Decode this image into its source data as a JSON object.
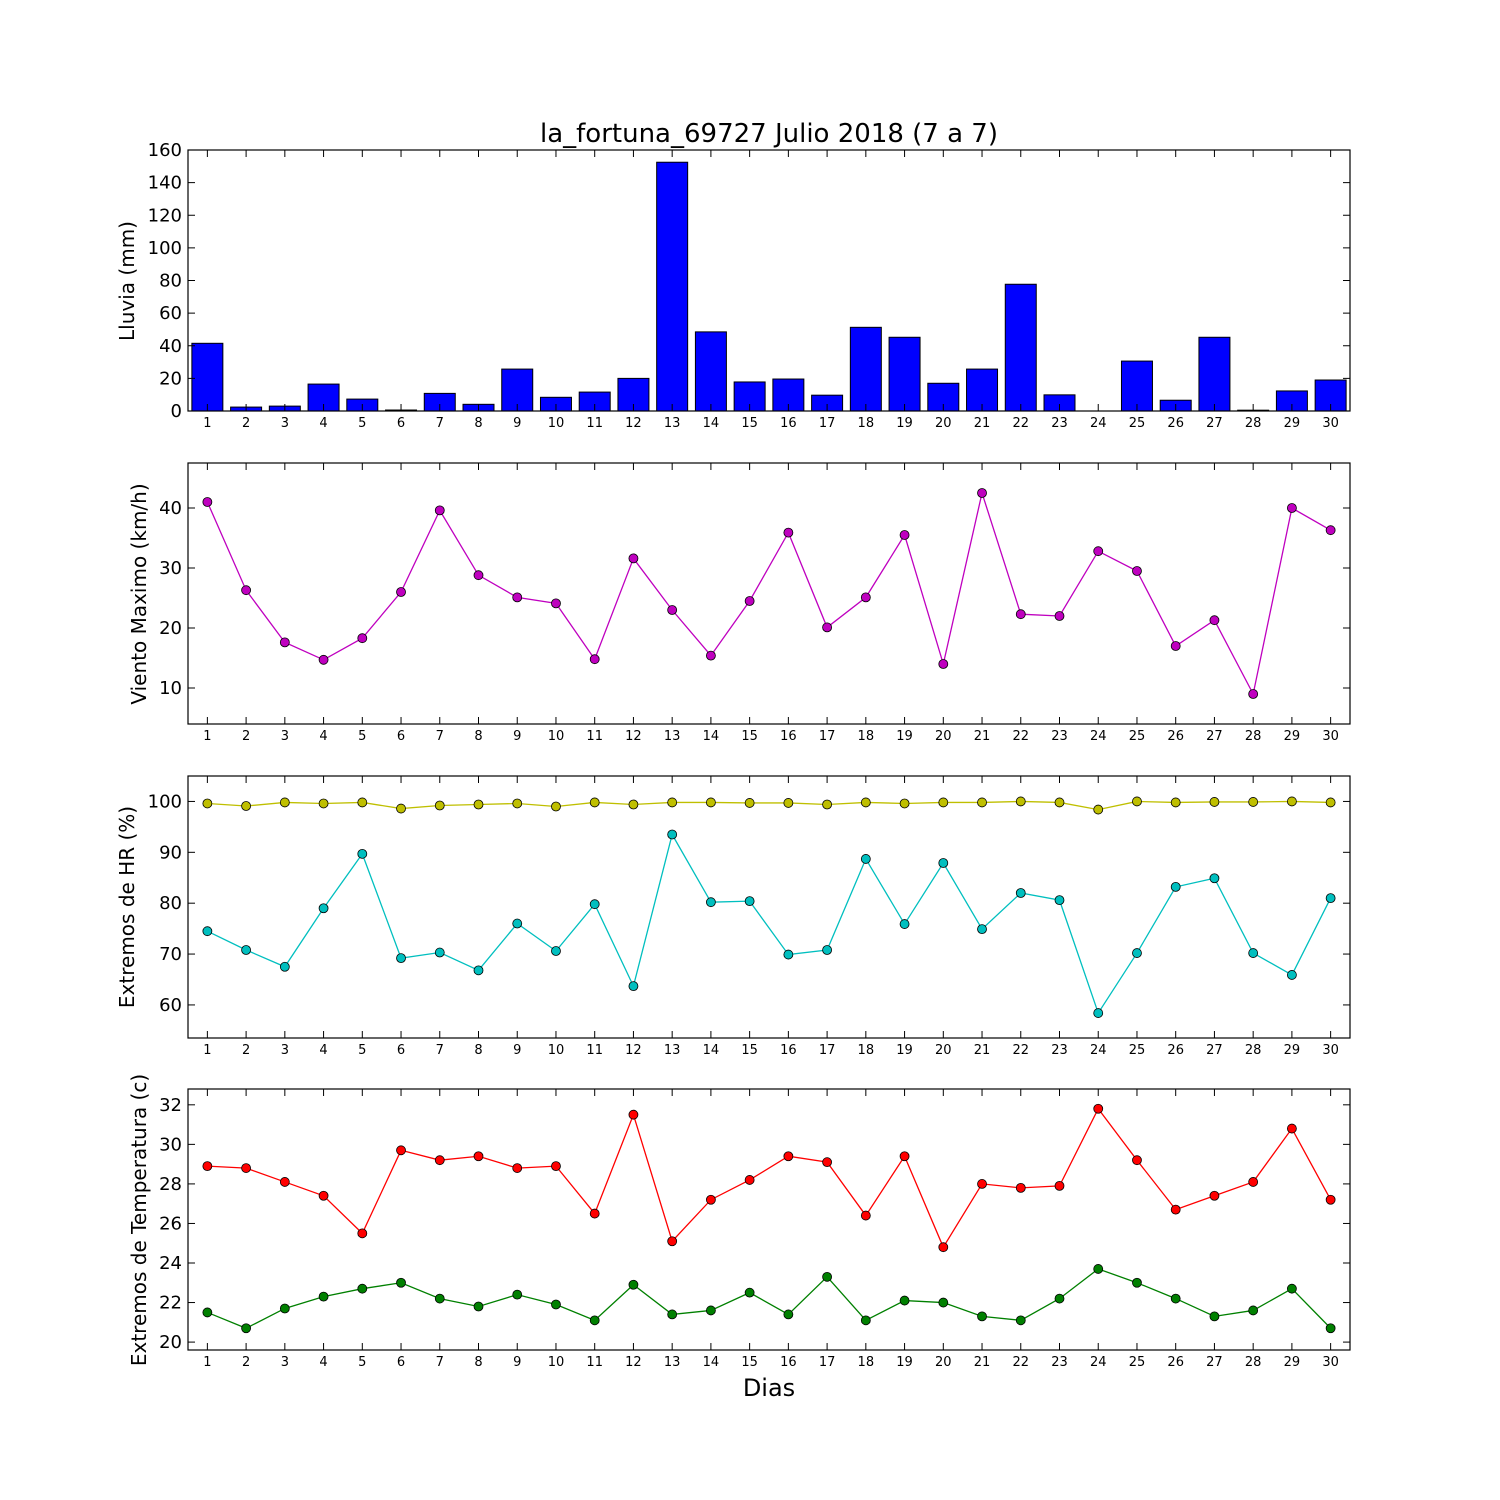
{
  "chart_data": {
    "title": "la_fortuna_69727 Julio 2018  (7 a 7)",
    "xlabel": "Dias",
    "x": [
      1,
      2,
      3,
      4,
      5,
      6,
      7,
      8,
      9,
      10,
      11,
      12,
      13,
      14,
      15,
      16,
      17,
      18,
      19,
      20,
      21,
      22,
      23,
      24,
      25,
      26,
      27,
      28,
      29,
      30
    ],
    "panels": [
      {
        "type": "bar",
        "ylabel": "Lluvia (mm)",
        "ylim": [
          0,
          160
        ],
        "yticks": [
          0,
          20,
          40,
          60,
          80,
          100,
          120,
          140,
          160
        ],
        "series": [
          {
            "color": "#0000ff",
            "values": [
              41.5,
              2.4,
              3,
              16.5,
              7.3,
              0.6,
              10.8,
              4.1,
              25.7,
              8.4,
              11.6,
              20,
              152.5,
              48.5,
              17.8,
              19.6,
              9.7,
              51.3,
              45.2,
              17,
              25.7,
              77.7,
              9.9,
              0,
              30.6,
              6.6,
              45.2,
              0.5,
              12.3,
              19
            ]
          }
        ]
      },
      {
        "type": "line",
        "ylabel": "Viento Maximo (km/h)",
        "ylim": [
          4,
          47.5
        ],
        "yticks": [
          10,
          20,
          30,
          40
        ],
        "series": [
          {
            "color": "#bf00bf",
            "values": [
              41,
              26.3,
              17.6,
              14.7,
              18.3,
              26,
              39.6,
              28.8,
              25.1,
              24.1,
              14.8,
              31.6,
              23,
              15.4,
              24.5,
              35.9,
              20.1,
              25.1,
              35.5,
              14,
              42.5,
              22.3,
              22,
              32.8,
              29.5,
              17,
              21.3,
              9,
              40,
              36.3
            ]
          }
        ]
      },
      {
        "type": "line",
        "ylabel": "Extremos de HR (%)",
        "ylim": [
          53.5,
          105
        ],
        "yticks": [
          60,
          70,
          80,
          90,
          100
        ],
        "series": [
          {
            "color": "#bfbf00",
            "values": [
              99.6,
              99.1,
              99.8,
              99.6,
              99.8,
              98.6,
              99.2,
              99.4,
              99.6,
              99,
              99.8,
              99.4,
              99.8,
              99.8,
              99.7,
              99.7,
              99.4,
              99.8,
              99.6,
              99.8,
              99.8,
              100,
              99.8,
              98.4,
              100,
              99.8,
              99.9,
              99.9,
              100,
              99.8
            ]
          },
          {
            "color": "#00bfbf",
            "values": [
              74.5,
              70.8,
              67.5,
              79,
              89.7,
              69.2,
              70.3,
              66.8,
              76,
              70.6,
              79.8,
              63.7,
              93.5,
              80.2,
              80.4,
              69.9,
              70.8,
              88.7,
              75.9,
              87.9,
              74.9,
              82,
              80.6,
              58.4,
              70.2,
              83.2,
              84.9,
              70.2,
              65.9,
              81
            ]
          }
        ]
      },
      {
        "type": "line",
        "ylabel": "Extremos de Temperatura (c)",
        "ylim": [
          19.6,
          32.8
        ],
        "yticks": [
          20,
          22,
          24,
          26,
          28,
          30,
          32
        ],
        "series": [
          {
            "color": "#ff0000",
            "values": [
              28.9,
              28.8,
              28.1,
              27.4,
              25.5,
              29.7,
              29.2,
              29.4,
              28.8,
              28.9,
              26.5,
              31.5,
              25.1,
              27.2,
              28.2,
              29.4,
              29.1,
              26.4,
              29.4,
              24.8,
              28,
              27.8,
              27.9,
              31.8,
              29.2,
              26.7,
              27.4,
              28.1,
              30.8,
              27.2
            ]
          },
          {
            "color": "#008000",
            "values": [
              21.5,
              20.7,
              21.7,
              22.3,
              22.7,
              23,
              22.2,
              21.8,
              22.4,
              21.9,
              21.1,
              22.9,
              21.4,
              21.6,
              22.5,
              21.4,
              23.3,
              21.1,
              22.1,
              22,
              21.3,
              21.1,
              22.2,
              23.7,
              23,
              22.2,
              21.3,
              21.6,
              22.7,
              20.7
            ]
          }
        ]
      }
    ]
  }
}
